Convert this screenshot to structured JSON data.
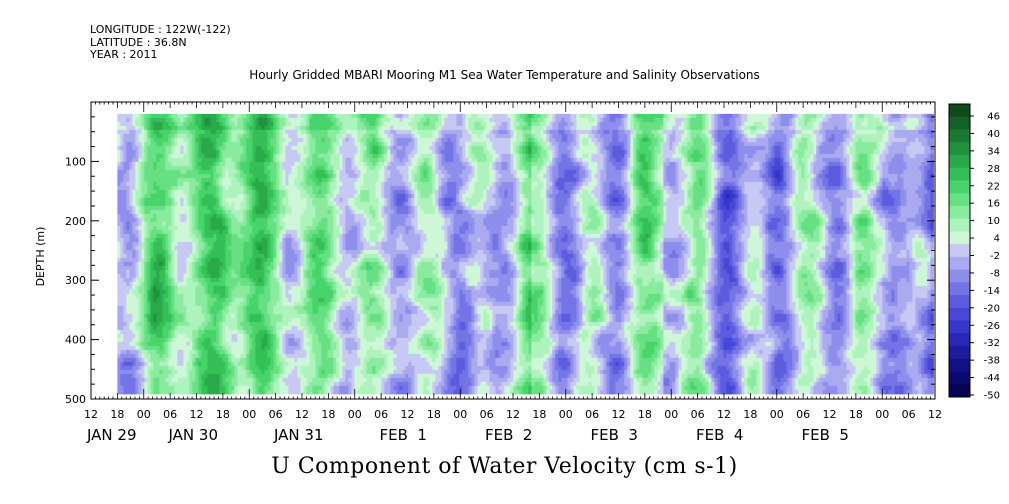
{
  "header": {
    "longitude": "LONGITUDE : 122W(-122)",
    "latitude": "LATITUDE : 36.8N",
    "year": "YEAR : 2011",
    "title": "Hourly Gridded MBARI Mooring M1 Sea Water Temperature and Salinity Observations"
  },
  "chart_data": {
    "type": "heatmap",
    "title": "U Component of Water Velocity (cm s-1)",
    "ylabel": "DEPTH (m)",
    "xlabel": "",
    "y_axis": {
      "range": [
        500,
        0
      ],
      "reversed": true,
      "ticks": [
        100,
        200,
        300,
        400,
        500
      ],
      "tick_labels": [
        "100",
        "200",
        "300",
        "400",
        "500"
      ]
    },
    "x_axis": {
      "start_hour_label": "12",
      "hour_tick_labels": [
        "12",
        "18",
        "00",
        "06",
        "12",
        "18",
        "00",
        "06",
        "12",
        "18",
        "00",
        "06",
        "12",
        "18",
        "00",
        "06",
        "12",
        "18",
        "00",
        "06",
        "12",
        "18",
        "00",
        "06",
        "12",
        "18",
        "00",
        "06",
        "12",
        "18",
        "00",
        "06",
        "12"
      ],
      "date_labels": [
        "JAN 29",
        "JAN 30",
        "JAN 31",
        "FEB  1",
        "FEB  2",
        "FEB  3",
        "FEB  4",
        "FEB  5"
      ]
    },
    "data_extent": {
      "depth_top_m": 20,
      "depth_bottom_m": 485,
      "start": "JAN 29 18:00",
      "end": "FEB 5 12:00"
    },
    "colorbar": {
      "labels": [
        "46",
        "40",
        "34",
        "28",
        "22",
        "16",
        "10",
        "4",
        "-2",
        "-8",
        "-14",
        "-20",
        "-26",
        "-32",
        "-38",
        "-44",
        "-50"
      ],
      "colors_top_to_bottom": [
        "#0d4a1c",
        "#14612a",
        "#1a7a34",
        "#22913f",
        "#2aa94a",
        "#34c057",
        "#48d46a",
        "#66e082",
        "#8aeb9f",
        "#aef3bd",
        "#cdf7d6",
        "#c8c8f5",
        "#aaaaf0",
        "#8e8eec",
        "#7474e6",
        "#5c5cde",
        "#4848d6",
        "#3636c8",
        "#2828b4",
        "#1c1c9e",
        "#121286",
        "#0a0a6c",
        "#040452"
      ]
    },
    "field_pattern": "alternating vertical bands of positive (green, ~0 to 25) and negative (blue, ~0 to -20) velocity; stronger negative near FEB 3-5"
  }
}
